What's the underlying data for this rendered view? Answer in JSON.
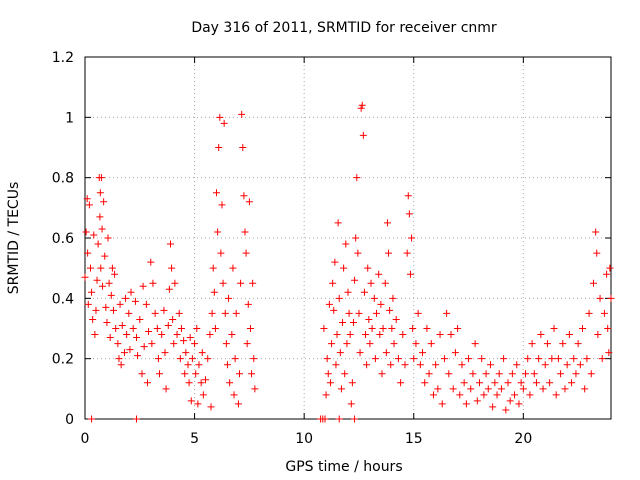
{
  "chart_data": {
    "type": "scatter",
    "title": "Day 316 of 2011, SRMTID for receiver cnmr",
    "xlabel": "GPS time / hours",
    "ylabel": "SRMTID / TECUs",
    "xlim": [
      0,
      24
    ],
    "ylim": [
      0,
      1.2
    ],
    "x_ticks": [
      0,
      5,
      10,
      15,
      20
    ],
    "x_tick_labels": [
      "0",
      "5",
      "10",
      "15",
      "20"
    ],
    "y_ticks": [
      0,
      0.2,
      0.4,
      0.6,
      0.8,
      1.0,
      1.2
    ],
    "y_tick_labels": [
      "0",
      "0.2",
      "0.4",
      "0.6",
      "0.8",
      "1",
      "1.2"
    ],
    "grid": true,
    "marker": "+",
    "series": [
      {
        "name": "SRMTID",
        "color": "#ff0000",
        "points": [
          [
            0.0,
            0.47
          ],
          [
            0.05,
            0.62
          ],
          [
            0.1,
            0.73
          ],
          [
            0.12,
            0.55
          ],
          [
            0.15,
            0.38
          ],
          [
            0.2,
            0.71
          ],
          [
            0.25,
            0.5
          ],
          [
            0.3,
            0.42
          ],
          [
            0.35,
            0.33
          ],
          [
            0.4,
            0.61
          ],
          [
            0.45,
            0.28
          ],
          [
            0.5,
            0.36
          ],
          [
            0.55,
            0.46
          ],
          [
            0.6,
            0.58
          ],
          [
            0.65,
            0.8
          ],
          [
            0.68,
            0.67
          ],
          [
            0.7,
            0.75
          ],
          [
            0.72,
            0.5
          ],
          [
            0.75,
            0.8
          ],
          [
            0.78,
            0.63
          ],
          [
            0.8,
            0.44
          ],
          [
            0.85,
            0.72
          ],
          [
            0.9,
            0.54
          ],
          [
            0.95,
            0.37
          ],
          [
            1.0,
            0.32
          ],
          [
            1.05,
            0.6
          ],
          [
            1.1,
            0.45
          ],
          [
            1.15,
            0.27
          ],
          [
            1.2,
            0.41
          ],
          [
            1.25,
            0.5
          ],
          [
            1.3,
            0.36
          ],
          [
            1.35,
            0.48
          ],
          [
            1.4,
            0.3
          ],
          [
            1.5,
            0.25
          ],
          [
            1.55,
            0.2
          ],
          [
            1.6,
            0.38
          ],
          [
            1.65,
            0.18
          ],
          [
            1.7,
            0.31
          ],
          [
            1.8,
            0.22
          ],
          [
            1.85,
            0.4
          ],
          [
            1.9,
            0.28
          ],
          [
            2.0,
            0.35
          ],
          [
            2.05,
            0.23
          ],
          [
            2.1,
            0.42
          ],
          [
            2.2,
            0.3
          ],
          [
            2.3,
            0.39
          ],
          [
            2.35,
            0.27
          ],
          [
            2.4,
            0.21
          ],
          [
            2.5,
            0.33
          ],
          [
            2.6,
            0.15
          ],
          [
            2.65,
            0.44
          ],
          [
            2.7,
            0.24
          ],
          [
            2.8,
            0.38
          ],
          [
            2.85,
            0.12
          ],
          [
            2.9,
            0.29
          ],
          [
            3.0,
            0.52
          ],
          [
            3.05,
            0.25
          ],
          [
            3.1,
            0.45
          ],
          [
            3.2,
            0.35
          ],
          [
            3.3,
            0.3
          ],
          [
            3.35,
            0.2
          ],
          [
            3.4,
            0.15
          ],
          [
            3.5,
            0.28
          ],
          [
            3.6,
            0.36
          ],
          [
            3.65,
            0.22
          ],
          [
            3.7,
            0.1
          ],
          [
            3.8,
            0.31
          ],
          [
            3.85,
            0.43
          ],
          [
            3.9,
            0.58
          ],
          [
            3.95,
            0.5
          ],
          [
            4.0,
            0.33
          ],
          [
            4.05,
            0.25
          ],
          [
            4.1,
            0.45
          ],
          [
            4.2,
            0.28
          ],
          [
            4.3,
            0.35
          ],
          [
            4.35,
            0.2
          ],
          [
            4.4,
            0.3
          ],
          [
            4.5,
            0.26
          ],
          [
            4.55,
            0.15
          ],
          [
            4.6,
            0.22
          ],
          [
            4.7,
            0.18
          ],
          [
            4.75,
            0.12
          ],
          [
            4.8,
            0.27
          ],
          [
            4.85,
            0.06
          ],
          [
            4.9,
            0.2
          ],
          [
            5.0,
            0.25
          ],
          [
            5.05,
            0.15
          ],
          [
            5.1,
            0.3
          ],
          [
            5.15,
            0.05
          ],
          [
            5.2,
            0.18
          ],
          [
            5.3,
            0.12
          ],
          [
            5.35,
            0.22
          ],
          [
            5.4,
            0.08
          ],
          [
            5.5,
            0.13
          ],
          [
            5.6,
            0.2
          ],
          [
            5.7,
            0.28
          ],
          [
            5.75,
            0.04
          ],
          [
            5.8,
            0.35
          ],
          [
            5.85,
            0.5
          ],
          [
            5.9,
            0.42
          ],
          [
            5.95,
            0.3
          ],
          [
            6.0,
            0.75
          ],
          [
            6.05,
            0.62
          ],
          [
            6.1,
            0.9
          ],
          [
            6.15,
            1.0
          ],
          [
            6.2,
            0.55
          ],
          [
            6.25,
            0.71
          ],
          [
            6.3,
            0.45
          ],
          [
            6.35,
            0.98
          ],
          [
            6.4,
            0.35
          ],
          [
            6.45,
            0.25
          ],
          [
            6.5,
            0.18
          ],
          [
            6.55,
            0.4
          ],
          [
            6.6,
            0.12
          ],
          [
            6.7,
            0.28
          ],
          [
            6.75,
            0.5
          ],
          [
            6.8,
            0.08
          ],
          [
            6.85,
            0.2
          ],
          [
            6.9,
            0.35
          ],
          [
            7.0,
            0.05
          ],
          [
            7.05,
            0.15
          ],
          [
            7.1,
            0.45
          ],
          [
            7.15,
            1.01
          ],
          [
            7.2,
            0.9
          ],
          [
            7.25,
            0.74
          ],
          [
            7.3,
            0.62
          ],
          [
            7.35,
            0.55
          ],
          [
            7.4,
            0.25
          ],
          [
            7.45,
            0.38
          ],
          [
            7.5,
            0.72
          ],
          [
            7.55,
            0.3
          ],
          [
            7.6,
            0.15
          ],
          [
            7.65,
            0.45
          ],
          [
            7.7,
            0.2
          ],
          [
            7.75,
            0.1
          ],
          [
            10.9,
            0.3
          ],
          [
            11.0,
            0.08
          ],
          [
            11.05,
            0.2
          ],
          [
            11.1,
            0.15
          ],
          [
            11.15,
            0.38
          ],
          [
            11.2,
            0.12
          ],
          [
            11.25,
            0.25
          ],
          [
            11.3,
            0.45
          ],
          [
            11.35,
            0.36
          ],
          [
            11.4,
            0.52
          ],
          [
            11.45,
            0.18
          ],
          [
            11.5,
            0.28
          ],
          [
            11.55,
            0.65
          ],
          [
            11.6,
            0.4
          ],
          [
            11.65,
            0.22
          ],
          [
            11.7,
            0.1
          ],
          [
            11.75,
            0.32
          ],
          [
            11.8,
            0.5
          ],
          [
            11.85,
            0.15
          ],
          [
            11.9,
            0.58
          ],
          [
            11.95,
            0.25
          ],
          [
            12.0,
            0.42
          ],
          [
            12.05,
            0.35
          ],
          [
            12.1,
            0.28
          ],
          [
            12.15,
            0.05
          ],
          [
            12.2,
            0.12
          ],
          [
            12.25,
            0.32
          ],
          [
            12.3,
            0.46
          ],
          [
            12.35,
            0.6
          ],
          [
            12.4,
            0.8
          ],
          [
            12.45,
            0.55
          ],
          [
            12.5,
            0.35
          ],
          [
            12.55,
            0.22
          ],
          [
            12.6,
            1.03
          ],
          [
            12.65,
            1.04
          ],
          [
            12.7,
            0.94
          ],
          [
            12.75,
            0.42
          ],
          [
            12.8,
            0.28
          ],
          [
            12.85,
            0.18
          ],
          [
            12.9,
            0.5
          ],
          [
            12.95,
            0.33
          ],
          [
            13.0,
            0.25
          ],
          [
            13.05,
            0.45
          ],
          [
            13.1,
            0.3
          ],
          [
            13.2,
            0.4
          ],
          [
            13.25,
            0.2
          ],
          [
            13.3,
            0.35
          ],
          [
            13.4,
            0.48
          ],
          [
            13.45,
            0.28
          ],
          [
            13.5,
            0.38
          ],
          [
            13.55,
            0.15
          ],
          [
            13.6,
            0.3
          ],
          [
            13.7,
            0.45
          ],
          [
            13.75,
            0.22
          ],
          [
            13.8,
            0.65
          ],
          [
            13.85,
            0.55
          ],
          [
            13.9,
            0.36
          ],
          [
            13.95,
            0.18
          ],
          [
            14.0,
            0.3
          ],
          [
            14.05,
            0.4
          ],
          [
            14.1,
            0.25
          ],
          [
            14.2,
            0.33
          ],
          [
            14.3,
            0.2
          ],
          [
            14.4,
            0.12
          ],
          [
            14.5,
            0.28
          ],
          [
            14.6,
            0.18
          ],
          [
            14.7,
            0.55
          ],
          [
            14.75,
            0.74
          ],
          [
            14.8,
            0.68
          ],
          [
            14.85,
            0.48
          ],
          [
            14.9,
            0.6
          ],
          [
            14.95,
            0.3
          ],
          [
            15.0,
            0.2
          ],
          [
            15.1,
            0.25
          ],
          [
            15.2,
            0.35
          ],
          [
            15.3,
            0.18
          ],
          [
            15.4,
            0.22
          ],
          [
            15.5,
            0.12
          ],
          [
            15.6,
            0.3
          ],
          [
            15.7,
            0.15
          ],
          [
            15.8,
            0.25
          ],
          [
            15.9,
            0.08
          ],
          [
            16.0,
            0.18
          ],
          [
            16.1,
            0.1
          ],
          [
            16.2,
            0.28
          ],
          [
            16.3,
            0.05
          ],
          [
            16.4,
            0.2
          ],
          [
            16.5,
            0.35
          ],
          [
            16.6,
            0.15
          ],
          [
            16.7,
            0.28
          ],
          [
            16.8,
            0.1
          ],
          [
            16.9,
            0.22
          ],
          [
            17.0,
            0.3
          ],
          [
            17.1,
            0.08
          ],
          [
            17.2,
            0.18
          ],
          [
            17.3,
            0.12
          ],
          [
            17.4,
            0.05
          ],
          [
            17.5,
            0.2
          ],
          [
            17.6,
            0.1
          ],
          [
            17.7,
            0.15
          ],
          [
            17.8,
            0.25
          ],
          [
            17.9,
            0.06
          ],
          [
            18.0,
            0.12
          ],
          [
            18.1,
            0.2
          ],
          [
            18.2,
            0.08
          ],
          [
            18.3,
            0.15
          ],
          [
            18.4,
            0.1
          ],
          [
            18.5,
            0.18
          ],
          [
            18.6,
            0.04
          ],
          [
            18.7,
            0.12
          ],
          [
            18.8,
            0.08
          ],
          [
            18.9,
            0.15
          ],
          [
            19.0,
            0.1
          ],
          [
            19.1,
            0.2
          ],
          [
            19.2,
            0.03
          ],
          [
            19.3,
            0.12
          ],
          [
            19.4,
            0.06
          ],
          [
            19.5,
            0.15
          ],
          [
            19.6,
            0.08
          ],
          [
            19.7,
            0.18
          ],
          [
            19.8,
            0.05
          ],
          [
            19.9,
            0.12
          ],
          [
            20.0,
            0.1
          ],
          [
            20.1,
            0.15
          ],
          [
            20.2,
            0.2
          ],
          [
            20.3,
            0.08
          ],
          [
            20.4,
            0.25
          ],
          [
            20.5,
            0.15
          ],
          [
            20.6,
            0.12
          ],
          [
            20.7,
            0.2
          ],
          [
            20.8,
            0.28
          ],
          [
            20.9,
            0.1
          ],
          [
            21.0,
            0.18
          ],
          [
            21.1,
            0.25
          ],
          [
            21.2,
            0.12
          ],
          [
            21.3,
            0.2
          ],
          [
            21.4,
            0.3
          ],
          [
            21.5,
            0.08
          ],
          [
            21.6,
            0.2
          ],
          [
            21.7,
            0.15
          ],
          [
            21.8,
            0.25
          ],
          [
            21.9,
            0.1
          ],
          [
            22.0,
            0.18
          ],
          [
            22.1,
            0.28
          ],
          [
            22.2,
            0.12
          ],
          [
            22.3,
            0.2
          ],
          [
            22.4,
            0.15
          ],
          [
            22.5,
            0.25
          ],
          [
            22.6,
            0.18
          ],
          [
            22.7,
            0.3
          ],
          [
            22.8,
            0.1
          ],
          [
            22.9,
            0.2
          ],
          [
            23.0,
            0.35
          ],
          [
            23.1,
            0.15
          ],
          [
            23.2,
            0.45
          ],
          [
            23.3,
            0.62
          ],
          [
            23.35,
            0.55
          ],
          [
            23.4,
            0.28
          ],
          [
            23.5,
            0.4
          ],
          [
            23.6,
            0.2
          ],
          [
            23.7,
            0.35
          ],
          [
            23.8,
            0.48
          ],
          [
            23.85,
            0.3
          ],
          [
            23.9,
            0.22
          ],
          [
            23.95,
            0.5
          ],
          [
            24.0,
            0.4
          ],
          [
            0.3,
            0.0
          ],
          [
            2.35,
            0.0
          ],
          [
            10.75,
            0.0
          ],
          [
            10.85,
            0.0
          ],
          [
            10.95,
            0.0
          ],
          [
            11.6,
            0.0
          ],
          [
            12.3,
            0.0
          ]
        ]
      }
    ]
  }
}
